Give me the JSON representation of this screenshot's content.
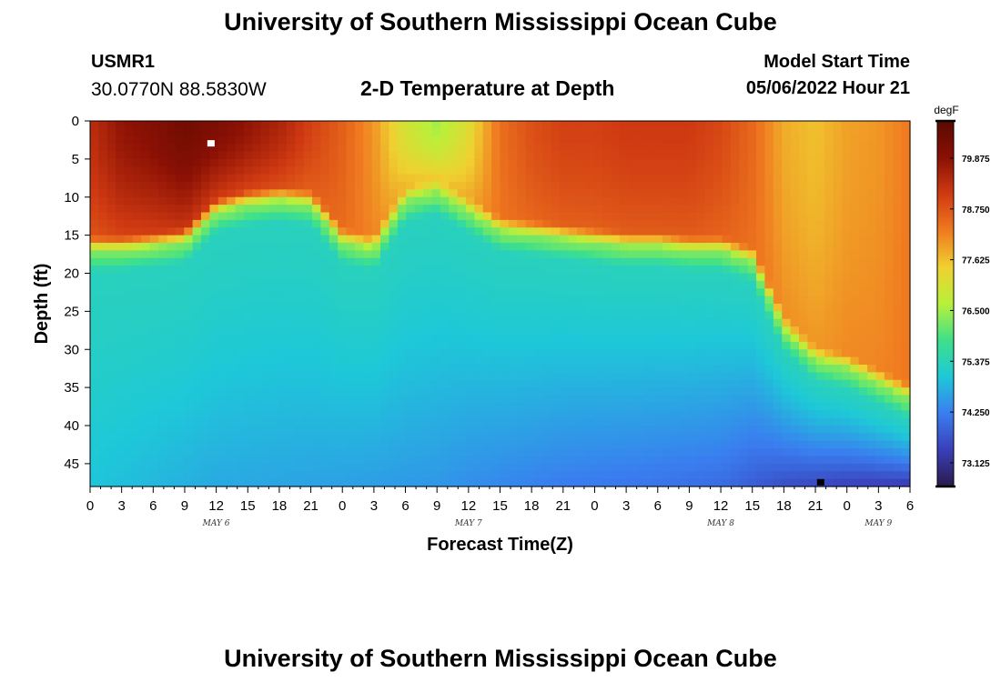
{
  "header": {
    "title": "University of Southern Mississippi Ocean Cube",
    "station": "USMR1",
    "coords": "30.0770N  88.5830W",
    "subtitle": "2-D Temperature at Depth",
    "model_start_label": "Model Start Time",
    "model_start_value": "05/06/2022 Hour 21"
  },
  "footer": {
    "title": "University of Southern Mississippi Ocean Cube"
  },
  "chart_data": {
    "type": "heatmap",
    "title": "2-D Temperature at Depth",
    "xlabel": "Forecast Time(Z)",
    "ylabel": "Depth (ft)",
    "x_unit": "hours since May 6 00Z",
    "xlim": [
      0,
      78
    ],
    "x_ticks": [
      0,
      3,
      6,
      9,
      12,
      15,
      18,
      21,
      24,
      27,
      30,
      33,
      36,
      39,
      42,
      45,
      48,
      51,
      54,
      57,
      60,
      63,
      66,
      69,
      72,
      75,
      78
    ],
    "x_tick_labels": [
      "0",
      "3",
      "6",
      "9",
      "12",
      "15",
      "18",
      "21",
      "0",
      "3",
      "6",
      "9",
      "12",
      "15",
      "18",
      "21",
      "0",
      "3",
      "6",
      "9",
      "12",
      "15",
      "18",
      "21",
      "0",
      "3",
      "6"
    ],
    "day_labels": [
      {
        "text": "MAY 6",
        "x": 12
      },
      {
        "text": "MAY 7",
        "x": 36
      },
      {
        "text": "MAY 8",
        "x": 60
      },
      {
        "text": "MAY 9",
        "x": 75
      }
    ],
    "ylim": [
      0,
      48
    ],
    "y_reversed": true,
    "y_ticks": [
      0,
      5,
      10,
      15,
      20,
      25,
      30,
      35,
      40,
      45
    ],
    "y_tick_labels": [
      "0",
      "5",
      "10",
      "15",
      "20",
      "25",
      "30",
      "35",
      "40",
      "45"
    ],
    "colorbar": {
      "unit": "degF",
      "range": [
        72.6,
        80.7
      ],
      "ticks": [
        73.125,
        74.25,
        75.375,
        76.5,
        77.625,
        78.75,
        79.875
      ],
      "tick_labels": [
        "73.125",
        "74.250",
        "75.375",
        "76.500",
        "77.625",
        "78.750",
        "79.875"
      ],
      "stops": [
        "#2a1a4a",
        "#3a3fb8",
        "#3a7df0",
        "#1ec8d8",
        "#3ee08a",
        "#b8f03a",
        "#f0d030",
        "#f07a20",
        "#d03a12",
        "#8a1004",
        "#5a0a02"
      ]
    },
    "markers": [
      {
        "kind": "max",
        "x": 11.5,
        "depth": 3,
        "color": "#ffffff"
      },
      {
        "kind": "min",
        "x": 69.5,
        "depth": 47.5,
        "color": "#000000"
      }
    ],
    "surface_layer": {
      "x": [
        0,
        3,
        6,
        9,
        12,
        15,
        18,
        21,
        24,
        27,
        30,
        33,
        36,
        39,
        42,
        45,
        48,
        51,
        54,
        57,
        60,
        63,
        66,
        69,
        72,
        75,
        78
      ],
      "thermocline_depth_ft": [
        17.5,
        17.5,
        17,
        16.5,
        12.5,
        11.5,
        11,
        11.5,
        16.5,
        17.5,
        11,
        10,
        12.5,
        15,
        15.5,
        16,
        16.5,
        17,
        17,
        17.5,
        17.5,
        19,
        28,
        32,
        33,
        35,
        37
      ],
      "surface_temp_degF": [
        79.3,
        79.8,
        80.0,
        80.3,
        80.1,
        79.8,
        79.5,
        79.0,
        78.6,
        78.0,
        77.0,
        76.5,
        77.2,
        78.4,
        78.8,
        79.0,
        79.0,
        79.1,
        79.1,
        79.1,
        78.9,
        78.5,
        77.8,
        77.6,
        77.9,
        78.0,
        78.3
      ]
    },
    "deep_layer": {
      "x": [
        0,
        12,
        24,
        33,
        36,
        45,
        54,
        60,
        66,
        69,
        72,
        78
      ],
      "deep_temp_degF": [
        75.0,
        74.7,
        74.6,
        74.5,
        74.4,
        74.2,
        74.1,
        74.0,
        73.6,
        73.5,
        73.4,
        73.3
      ]
    }
  }
}
